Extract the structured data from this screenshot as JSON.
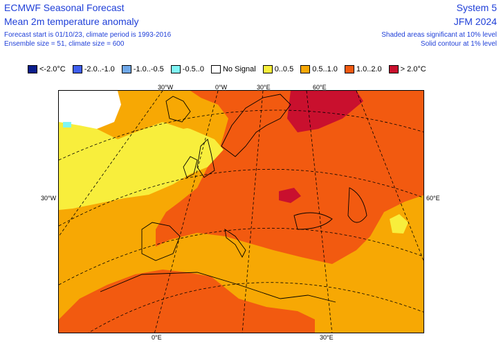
{
  "header": {
    "title": "ECMWF Seasonal Forecast",
    "subtitle": "Mean 2m temperature anomaly",
    "info_line_1": "Forecast start is 01/10/23, climate period is 1993-2016",
    "info_line_2": "Ensemble size = 51, climate size = 600",
    "system": "System 5",
    "period": "JFM 2024",
    "note_1": "Shaded areas significant at 10% level",
    "note_2": "Solid contour at 1% level"
  },
  "legend": [
    {
      "label": "<-2.0°C",
      "color": "#0a1e8c"
    },
    {
      "label": "-2.0..-1.0",
      "color": "#3f5ff0"
    },
    {
      "label": "-1.0..-0.5",
      "color": "#6fa8e8"
    },
    {
      "label": "-0.5..0",
      "color": "#7ff5f5"
    },
    {
      "label": "No Signal",
      "color": "#ffffff"
    },
    {
      "label": "0..0.5",
      "color": "#f8ee3c"
    },
    {
      "label": "0.5..1.0",
      "color": "#f7a804"
    },
    {
      "label": "1.0..2.0",
      "color": "#f25a10"
    },
    {
      "label": "> 2.0°C",
      "color": "#c9102e"
    }
  ],
  "map": {
    "ticks": {
      "top_30w": "30°W",
      "top_0w": "0°W",
      "top_30e": "30°E",
      "top_60e": "60°E",
      "left_30w": "30°W",
      "right_60e": "60°E",
      "bottom_0e": "0°E",
      "bottom_30e": "30°E"
    }
  }
}
